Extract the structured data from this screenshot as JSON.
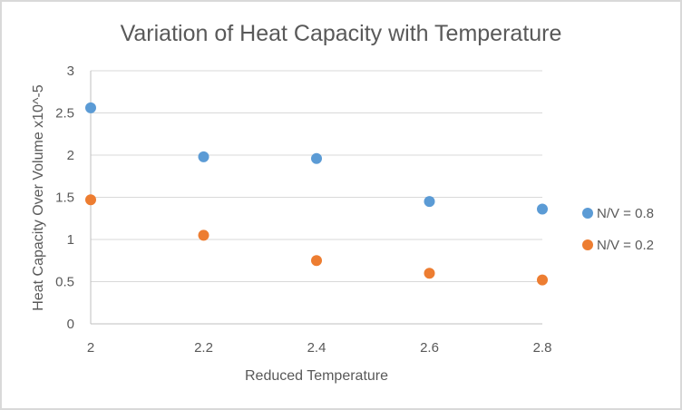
{
  "chart_data": {
    "type": "scatter",
    "title": "Variation of Heat Capacity with Temperature",
    "xlabel": "Reduced Temperature",
    "ylabel": "Heat Capacity Over Volume x10^-5",
    "xlim": [
      2,
      2.8
    ],
    "ylim": [
      0,
      3
    ],
    "x_ticks": [
      "2",
      "2.2",
      "2.4",
      "2.6",
      "2.8"
    ],
    "x_tick_values": [
      2,
      2.2,
      2.4,
      2.6,
      2.8
    ],
    "y_ticks": [
      "0",
      "0.5",
      "1",
      "1.5",
      "2",
      "2.5",
      "3"
    ],
    "y_tick_values": [
      0,
      0.5,
      1,
      1.5,
      2,
      2.5,
      3
    ],
    "grid": "horizontal",
    "legend_position": "right",
    "series": [
      {
        "name": "N/V = 0.8",
        "color": "#5B9BD5",
        "x": [
          2,
          2.2,
          2.4,
          2.6,
          2.8
        ],
        "y": [
          2.56,
          1.98,
          1.96,
          1.45,
          1.36
        ]
      },
      {
        "name": "N/V = 0.2",
        "color": "#ED7D31",
        "x": [
          2,
          2.2,
          2.4,
          2.6,
          2.8
        ],
        "y": [
          1.47,
          1.05,
          0.75,
          0.6,
          0.52
        ]
      }
    ]
  }
}
